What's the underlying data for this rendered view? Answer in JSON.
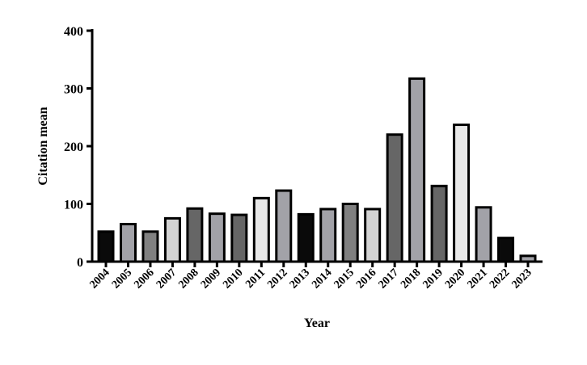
{
  "chart_data": {
    "type": "bar",
    "title": "",
    "xlabel": "Year",
    "ylabel": "Citation mean",
    "ylim": [
      0,
      400
    ],
    "yticks": [
      "0",
      "100",
      "200",
      "300",
      "400"
    ],
    "grid": false,
    "categories": [
      "2004",
      "2005",
      "2006",
      "2007",
      "2008",
      "2009",
      "2010",
      "2011",
      "2012",
      "2013",
      "2014",
      "2015",
      "2016",
      "2017",
      "2018",
      "2019",
      "2020",
      "2021",
      "2022",
      "2023"
    ],
    "values": [
      52,
      65,
      52,
      75,
      92,
      83,
      81,
      110,
      123,
      82,
      91,
      100,
      91,
      220,
      317,
      131,
      237,
      94,
      41,
      10
    ],
    "colors": [
      "#0a0a0a",
      "#a2a2a8",
      "#808080",
      "#d3d3d3",
      "#666666",
      "#a2a2a8",
      "#666666",
      "#e8e8e8",
      "#a2a2a8",
      "#0a0a0a",
      "#a2a2a8",
      "#808080",
      "#d3d3d3",
      "#666666",
      "#a2a2a8",
      "#666666",
      "#e8e8e8",
      "#a2a2a8",
      "#0a0a0a",
      "#a2a2a8"
    ]
  }
}
